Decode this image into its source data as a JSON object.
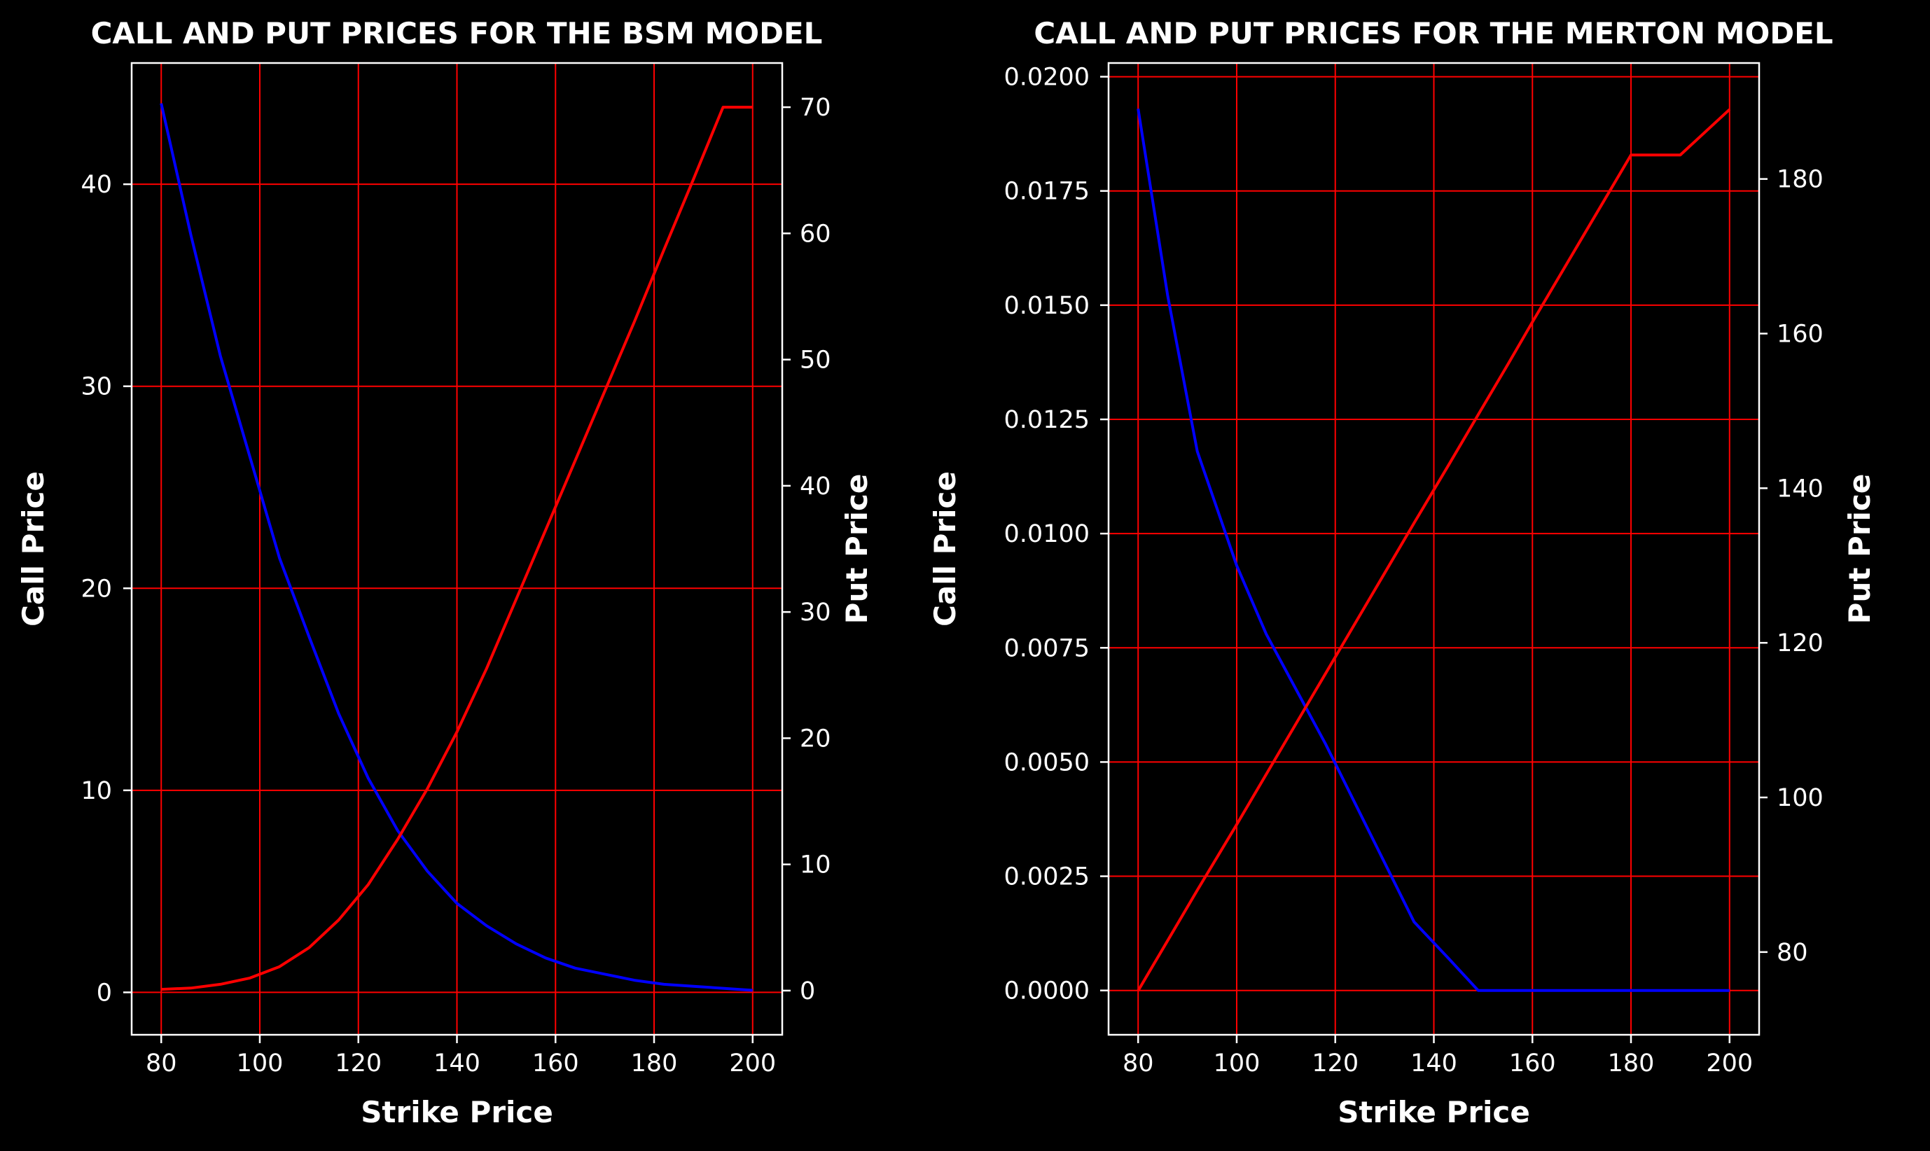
{
  "chart_data": [
    {
      "type": "line",
      "title": "CALL AND PUT PRICES FOR THE BSM MODEL",
      "xlabel": "Strike Price",
      "ylabel": "Call Price",
      "y2label": "Put Price",
      "xlim": [
        74,
        206
      ],
      "ylim": [
        -2.1,
        46
      ],
      "y2lim": [
        -3.5,
        73.5
      ],
      "xticks": [
        80,
        100,
        120,
        140,
        160,
        180,
        200
      ],
      "yticks": [
        0,
        10,
        20,
        30,
        40
      ],
      "y2ticks": [
        0,
        10,
        20,
        30,
        40,
        50,
        60,
        70
      ],
      "grid": true,
      "x": [
        80,
        86,
        92,
        98,
        104,
        110,
        116,
        122,
        128,
        134,
        140,
        146,
        152,
        158,
        164,
        170,
        176,
        182,
        188,
        194,
        200
      ],
      "series": [
        {
          "axis": "left",
          "color": "#0000ff",
          "values": [
            44.0,
            37.5,
            31.5,
            26.5,
            21.5,
            17.6,
            13.8,
            10.6,
            8.0,
            6.0,
            4.4,
            3.3,
            2.4,
            1.7,
            1.2,
            0.9,
            0.6,
            0.4,
            0.3,
            0.2,
            0.1
          ]
        },
        {
          "axis": "right",
          "color": "#ff0000",
          "values": [
            0.1,
            0.2,
            0.5,
            1.0,
            1.9,
            3.4,
            5.6,
            8.4,
            12.0,
            16.0,
            20.5,
            25.5,
            31.0,
            36.5,
            42.0,
            47.5,
            53.0,
            58.7,
            64.3,
            70.0,
            70.0
          ]
        }
      ]
    },
    {
      "type": "line",
      "title": "CALL AND PUT PRICES FOR THE MERTON MODEL",
      "xlabel": "Strike Price",
      "ylabel": "Call Price",
      "y2label": "Put Price",
      "xlim": [
        74,
        206
      ],
      "ylim": [
        -0.00097,
        0.0203
      ],
      "y2lim": [
        69.3,
        195
      ],
      "xticks": [
        80,
        100,
        120,
        140,
        160,
        180,
        200
      ],
      "yticks": [
        "0.0000",
        "0.0025",
        "0.0050",
        "0.0075",
        "0.0100",
        "0.0125",
        "0.0150",
        "0.0175",
        "0.0200"
      ],
      "y2ticks": [
        80,
        100,
        120,
        140,
        160,
        180
      ],
      "grid": true,
      "x": [
        80,
        86,
        92,
        100,
        106,
        112,
        118,
        124,
        130,
        136,
        143,
        149,
        155,
        160,
        170,
        180,
        190,
        200
      ],
      "series": [
        {
          "axis": "left",
          "color": "#0000ff",
          "values": [
            0.0193,
            0.0152,
            0.0118,
            0.0093,
            0.0078,
            0.0066,
            0.0054,
            0.0041,
            0.0028,
            0.0015,
            0.0007,
            0.0,
            0.0,
            0.0,
            0.0,
            0.0,
            0.0,
            0.0
          ]
        },
        {
          "axis": "right",
          "color": "#ff0000",
          "values": [
            75.0,
            81.5,
            88.0,
            96.5,
            103.0,
            109.5,
            116.0,
            122.5,
            129.0,
            135.5,
            143.0,
            149.5,
            156.0,
            161.5,
            172.3,
            183.1,
            183.1,
            189.0
          ]
        }
      ]
    }
  ]
}
